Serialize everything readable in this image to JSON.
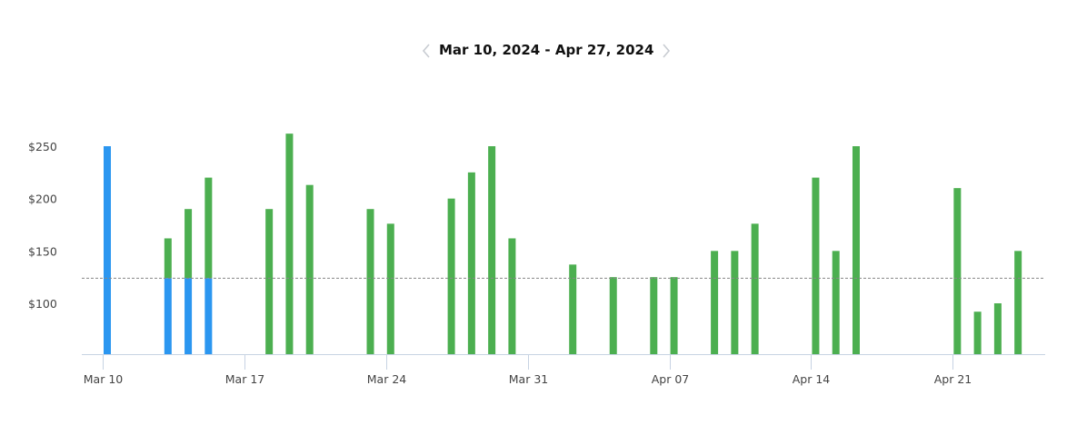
{
  "header": {
    "range_label": "Mar 10, 2024 - Apr 27, 2024",
    "prev_icon": "chevron-left-icon",
    "next_icon": "chevron-right-icon"
  },
  "colors": {
    "past": "#2b96f0",
    "current": "#4caf50",
    "axis": "#c7d3e3",
    "reference_line": "#888888"
  },
  "chart_data": {
    "type": "bar",
    "title": "",
    "xlabel": "",
    "ylabel": "",
    "ylim": [
      50,
      262
    ],
    "y_ticks": [
      100,
      150,
      200,
      250
    ],
    "y_tick_labels": [
      "$100",
      "$150",
      "$200",
      "$250"
    ],
    "x_ticks": [
      "2024-03-10",
      "2024-03-17",
      "2024-03-24",
      "2024-03-31",
      "2024-04-07",
      "2024-04-14",
      "2024-04-21"
    ],
    "x_tick_labels": [
      "Mar 10",
      "Mar 17",
      "Mar 24",
      "Mar 31",
      "Apr 07",
      "Apr 14",
      "Apr 21"
    ],
    "x_range": [
      "2024-03-10",
      "2024-04-27"
    ],
    "reference_line": 124,
    "grid": false,
    "legend": "none",
    "bars": [
      {
        "date": "2024-03-10",
        "value": 250
      },
      {
        "date": "2024-03-13",
        "value": 162
      },
      {
        "date": "2024-03-14",
        "value": 190
      },
      {
        "date": "2024-03-15",
        "value": 220
      },
      {
        "date": "2024-03-18",
        "value": 190
      },
      {
        "date": "2024-03-19",
        "value": 262
      },
      {
        "date": "2024-03-20",
        "value": 213
      },
      {
        "date": "2024-03-23",
        "value": 190
      },
      {
        "date": "2024-03-24",
        "value": 176
      },
      {
        "date": "2024-03-27",
        "value": 200
      },
      {
        "date": "2024-03-28",
        "value": 225
      },
      {
        "date": "2024-03-29",
        "value": 250
      },
      {
        "date": "2024-03-30",
        "value": 162
      },
      {
        "date": "2024-04-02",
        "value": 137
      },
      {
        "date": "2024-04-04",
        "value": 125
      },
      {
        "date": "2024-04-06",
        "value": 125
      },
      {
        "date": "2024-04-07",
        "value": 125
      },
      {
        "date": "2024-04-09",
        "value": 150
      },
      {
        "date": "2024-04-10",
        "value": 150
      },
      {
        "date": "2024-04-11",
        "value": 176
      },
      {
        "date": "2024-04-14",
        "value": 220
      },
      {
        "date": "2024-04-15",
        "value": 150
      },
      {
        "date": "2024-04-16",
        "value": 250
      },
      {
        "date": "2024-04-21",
        "value": 210
      },
      {
        "date": "2024-04-22",
        "value": 92
      },
      {
        "date": "2024-04-23",
        "value": 100
      },
      {
        "date": "2024-04-24",
        "value": 150
      }
    ]
  }
}
